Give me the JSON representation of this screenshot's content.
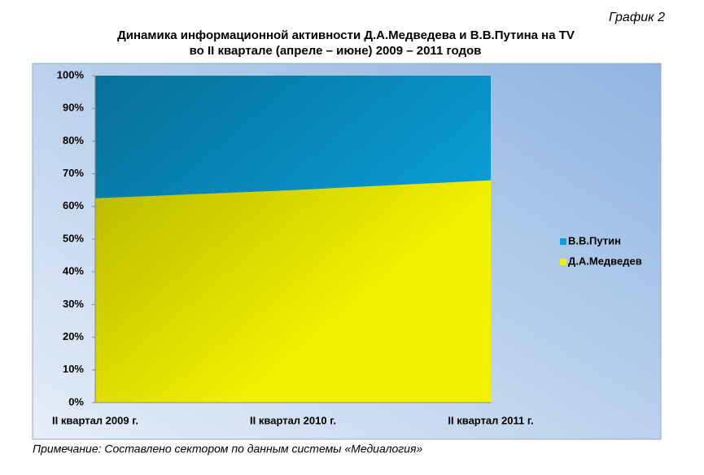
{
  "figure_label": "График 2",
  "note": "Примечание: Составлено сектором по данным системы «Медиалогия»",
  "chart_data": {
    "type": "stacked_area_percent",
    "title": "Динамика информационной активности Д.А.Медведева и В.В.Путина на TV",
    "subtitle": "во II квартале (апреле – июне) 2009 – 2011 годов",
    "categories": [
      "II квартал 2009 г.",
      "II квартал 2010 г.",
      "II квартал 2011 г."
    ],
    "series": [
      {
        "name": "Д.А.Медведев",
        "color": "#f2f200",
        "values": [
          62.5,
          65,
          68
        ]
      },
      {
        "name": "В.В.Путин",
        "color": "#0a9fd8",
        "values": [
          37.5,
          35,
          32
        ]
      }
    ],
    "ylim": [
      0,
      100
    ],
    "yticks": [
      {
        "value": 0,
        "label": "0%"
      },
      {
        "value": 10,
        "label": "10%"
      },
      {
        "value": 20,
        "label": "20%"
      },
      {
        "value": 30,
        "label": "30%"
      },
      {
        "value": 40,
        "label": "40%"
      },
      {
        "value": 50,
        "label": "50%"
      },
      {
        "value": 60,
        "label": "60%"
      },
      {
        "value": 70,
        "label": "70%"
      },
      {
        "value": 80,
        "label": "80%"
      },
      {
        "value": 90,
        "label": "90%"
      },
      {
        "value": 100,
        "label": "100%"
      }
    ],
    "legend": "right"
  }
}
